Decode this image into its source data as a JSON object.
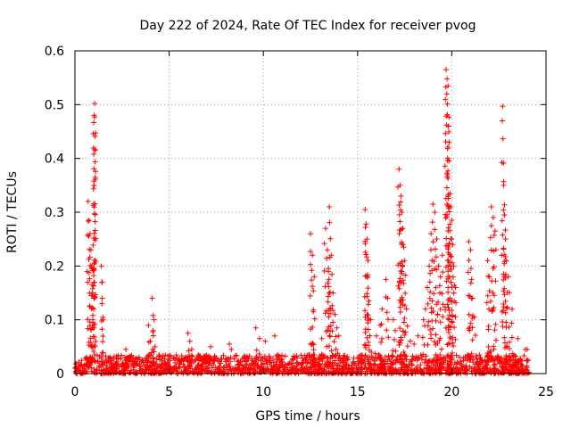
{
  "chart_data": {
    "type": "scatter",
    "title": "Day 222 of 2024, Rate Of TEC Index for receiver pvog",
    "xlabel": "GPS time / hours",
    "ylabel": "ROTI / TECUs",
    "xlim": [
      0,
      25
    ],
    "ylim": [
      0,
      0.6
    ],
    "x_ticks": [
      0,
      5,
      10,
      15,
      20,
      25
    ],
    "y_ticks": [
      0,
      0.1,
      0.2,
      0.3,
      0.4,
      0.5,
      0.6
    ],
    "x_tick_labels": [
      "0",
      "5",
      "10",
      "15",
      "20",
      "25"
    ],
    "y_tick_labels": [
      "0",
      "0.1",
      "0.2",
      "0.3",
      "0.4",
      "0.5",
      "0.6"
    ],
    "grid": true,
    "marker": "+",
    "color": "#ff0000",
    "series": [
      {
        "name": "ROTI",
        "baseline_band": {
          "x_range": [
            0,
            24.1
          ],
          "y_range": [
            0.0,
            0.035
          ]
        },
        "x": [
          0.7,
          0.75,
          0.8,
          0.85,
          0.9,
          0.92,
          0.95,
          1.0,
          1.02,
          1.05,
          1.05,
          1.1,
          1.4,
          1.45,
          1.5,
          0.95,
          1.0,
          2.7,
          2.8,
          3.9,
          4.0,
          4.1,
          4.2,
          4.15,
          4.25,
          6.0,
          6.1,
          6.2,
          7.2,
          8.2,
          8.3,
          9.6,
          9.8,
          10.1,
          10.6,
          12.5,
          12.6,
          12.7,
          13.1,
          13.3,
          13.4,
          13.5,
          13.6,
          13.7,
          13.8,
          13.9,
          14.0,
          13.45,
          13.55,
          15.4,
          15.45,
          15.5,
          15.55,
          15.6,
          15.7,
          16.0,
          16.2,
          16.3,
          16.5,
          16.6,
          16.9,
          17.0,
          17.2,
          17.25,
          17.3,
          17.35,
          17.4,
          17.45,
          17.5,
          17.6,
          17.8,
          18.0,
          18.2,
          18.5,
          18.6,
          18.7,
          18.8,
          18.9,
          19.0,
          19.1,
          19.2,
          19.3,
          19.4,
          19.5,
          19.7,
          19.75,
          19.8,
          19.82,
          19.85,
          19.9,
          19.95,
          20.0,
          20.05,
          20.1,
          20.2,
          20.9,
          21.0,
          21.05,
          21.1,
          21.2,
          21.9,
          22.0,
          22.1,
          22.2,
          22.3,
          22.7,
          22.75,
          22.8,
          22.85,
          22.9,
          23.0,
          23.2,
          23.5,
          23.9,
          24.0
        ],
        "y": [
          0.32,
          0.285,
          0.26,
          0.23,
          0.195,
          0.15,
          0.1,
          0.408,
          0.48,
          0.502,
          0.477,
          0.06,
          0.2,
          0.17,
          0.1,
          0.085,
          0.12,
          0.045,
          0.03,
          0.09,
          0.06,
          0.14,
          0.1,
          0.08,
          0.05,
          0.075,
          0.06,
          0.045,
          0.05,
          0.055,
          0.045,
          0.085,
          0.065,
          0.06,
          0.07,
          0.26,
          0.22,
          0.18,
          0.065,
          0.27,
          0.23,
          0.31,
          0.22,
          0.15,
          0.11,
          0.085,
          0.07,
          0.19,
          0.12,
          0.305,
          0.278,
          0.25,
          0.21,
          0.135,
          0.1,
          0.07,
          0.09,
          0.12,
          0.175,
          0.14,
          0.1,
          0.08,
          0.38,
          0.35,
          0.33,
          0.3,
          0.27,
          0.235,
          0.21,
          0.12,
          0.06,
          0.055,
          0.07,
          0.1,
          0.12,
          0.16,
          0.2,
          0.26,
          0.315,
          0.3,
          0.25,
          0.2,
          0.18,
          0.22,
          0.565,
          0.548,
          0.535,
          0.46,
          0.395,
          0.335,
          0.31,
          0.285,
          0.24,
          0.2,
          0.16,
          0.245,
          0.23,
          0.175,
          0.14,
          0.105,
          0.21,
          0.18,
          0.31,
          0.29,
          0.265,
          0.497,
          0.35,
          0.295,
          0.25,
          0.21,
          0.18,
          0.12,
          0.065,
          0.045,
          0.045
        ]
      }
    ]
  }
}
